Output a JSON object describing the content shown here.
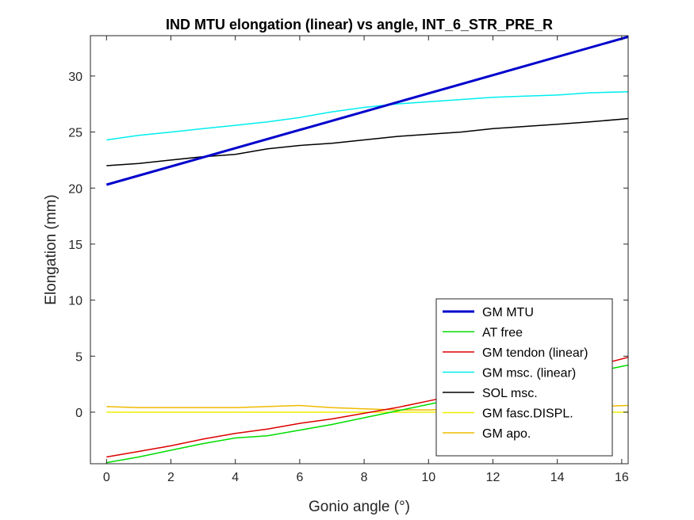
{
  "chart_data": {
    "type": "line",
    "title": "IND MTU elongation (linear) vs angle, INT_6_STR_PRE_R",
    "xlabel": "Gonio angle (°)",
    "ylabel": "Elongation (mm)",
    "xlim": [
      -0.5,
      16.2
    ],
    "ylim": [
      -4.6,
      33.6
    ],
    "xticks": [
      0,
      2,
      4,
      6,
      8,
      10,
      12,
      14,
      16
    ],
    "yticks": [
      0,
      5,
      10,
      15,
      20,
      25,
      30
    ],
    "grid": false,
    "legend_position": "bottom-right",
    "series": [
      {
        "name": "GM MTU",
        "color": "#0000CC",
        "bold": true,
        "x": [
          0,
          16.2
        ],
        "y": [
          20.3,
          33.5
        ]
      },
      {
        "name": "AT free",
        "color": "#00DD00",
        "bold": false,
        "x": [
          0,
          1,
          2,
          3,
          4,
          5,
          6,
          7,
          8,
          9,
          10,
          11,
          12,
          13,
          14,
          15,
          16.2
        ],
        "y": [
          -4.5,
          -4.0,
          -3.4,
          -2.8,
          -2.3,
          -2.1,
          -1.6,
          -1.1,
          -0.5,
          0.1,
          0.7,
          1.3,
          1.8,
          2.4,
          2.9,
          3.5,
          4.2
        ]
      },
      {
        "name": "GM tendon (linear)",
        "color": "#DD0000",
        "bold": false,
        "x": [
          0,
          1,
          2,
          3,
          4,
          5,
          6,
          7,
          8,
          9,
          10,
          11,
          12,
          13,
          14,
          15,
          16.2
        ],
        "y": [
          -4.0,
          -3.5,
          -3.0,
          -2.4,
          -1.9,
          -1.5,
          -1.0,
          -0.6,
          -0.1,
          0.4,
          1.0,
          1.6,
          2.2,
          2.8,
          3.4,
          4.0,
          4.9
        ]
      },
      {
        "name": "GM msc. (linear)",
        "color": "#00EEEE",
        "bold": false,
        "x": [
          0,
          1,
          2,
          3,
          4,
          5,
          6,
          7,
          8,
          9,
          10,
          11,
          12,
          13,
          14,
          15,
          16.2
        ],
        "y": [
          24.3,
          24.7,
          25.0,
          25.3,
          25.6,
          25.9,
          26.3,
          26.8,
          27.2,
          27.5,
          27.7,
          27.9,
          28.1,
          28.2,
          28.3,
          28.5,
          28.6
        ]
      },
      {
        "name": "SOL msc.",
        "color": "#000000",
        "bold": false,
        "x": [
          0,
          1,
          2,
          3,
          4,
          5,
          6,
          7,
          8,
          9,
          10,
          11,
          12,
          13,
          14,
          15,
          16.2
        ],
        "y": [
          22.0,
          22.2,
          22.5,
          22.8,
          23.0,
          23.5,
          23.8,
          24.0,
          24.3,
          24.6,
          24.8,
          25.0,
          25.3,
          25.5,
          25.7,
          25.9,
          26.2
        ]
      },
      {
        "name": "GM fasc.DISPL.",
        "color": "#EEEE00",
        "bold": false,
        "x": [
          0,
          2,
          4,
          6,
          8,
          10,
          12,
          14,
          16.2
        ],
        "y": [
          0.0,
          0.0,
          0.0,
          0.0,
          0.0,
          0.0,
          0.0,
          0.0,
          0.0
        ]
      },
      {
        "name": "GM apo.",
        "color": "#EEBB00",
        "bold": false,
        "x": [
          0,
          1,
          2,
          3,
          4,
          5,
          6,
          7,
          8,
          9,
          10,
          11,
          12,
          13,
          14,
          15,
          16.2
        ],
        "y": [
          0.5,
          0.4,
          0.4,
          0.4,
          0.4,
          0.5,
          0.6,
          0.4,
          0.3,
          0.2,
          0.2,
          0.3,
          0.3,
          0.4,
          0.5,
          0.5,
          0.6
        ]
      }
    ]
  }
}
